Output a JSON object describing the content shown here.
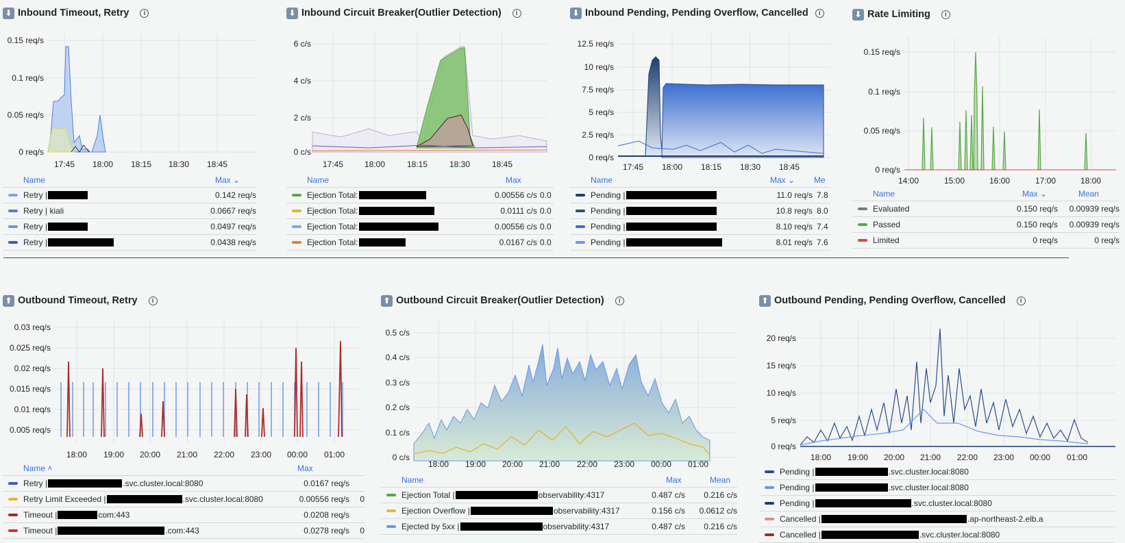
{
  "panels": {
    "in_timeout": {
      "title": "Inbound Timeout, Retry",
      "y_ticks": [
        "0.15 req/s",
        "0.1 req/s",
        "0.05 req/s",
        "0 req/s"
      ],
      "x_ticks": [
        "17:45",
        "18:00",
        "18:15",
        "18:30",
        "18:45"
      ],
      "legend_headers": {
        "name": "Name",
        "max": "Max"
      },
      "rows": [
        {
          "prefix": "Retry |",
          "suffix": "",
          "max": "0.142 req/s",
          "color": "#7ea7e6"
        },
        {
          "prefix": "Retry | kiali",
          "suffix": "",
          "max": "0.0667 req/s",
          "color": "#5080dc"
        },
        {
          "prefix": "Retry |",
          "suffix": "",
          "max": "0.0497 req/s",
          "color": "#6a98e8"
        },
        {
          "prefix": "Retry |",
          "suffix": "",
          "max": "0.0438 req/s",
          "color": "#3a63b8"
        }
      ]
    },
    "in_cb": {
      "title": "Inbound Circuit Breaker(Outlier Detection)",
      "y_ticks": [
        "6 c/s",
        "4 c/s",
        "2 c/s",
        "0 c/s"
      ],
      "x_ticks": [
        "17:45",
        "18:00",
        "18:15",
        "18:30",
        "18:45"
      ],
      "legend_headers": {
        "name": "Name",
        "max": "Max"
      },
      "rows": [
        {
          "prefix": "Ejection Total:",
          "max": "0.00556 c/s",
          "extra": "0.0",
          "color": "#5aa64b"
        },
        {
          "prefix": "Ejection Total:",
          "max": "0.0111 c/s",
          "extra": "0.0",
          "color": "#e0b93a"
        },
        {
          "prefix": "Ejection Total:",
          "max": "0.00556 c/s",
          "extra": "0.0",
          "color": "#7ea7e6"
        },
        {
          "prefix": "Ejection Total:",
          "max": "0.0167 c/s",
          "extra": "0.0",
          "color": "#e67e3a"
        }
      ]
    },
    "in_pending": {
      "title": "Inbound Pending, Pending Overflow, Cancelled",
      "y_ticks": [
        "12.5 req/s",
        "10 req/s",
        "7.5 req/s",
        "5 req/s",
        "2.5 req/s",
        "0 req/s"
      ],
      "x_ticks": [
        "17:45",
        "18:00",
        "18:15",
        "18:30",
        "18:45"
      ],
      "legend_headers": {
        "name": "Name",
        "max": "Max",
        "mean": "Me"
      },
      "rows": [
        {
          "prefix": "Pending |",
          "max": "11.0 req/s",
          "extra": "7.8",
          "color": "#1f3f6e"
        },
        {
          "prefix": "Pending |",
          "max": "10.8 req/s",
          "extra": "8.0",
          "color": "#2a4f8a"
        },
        {
          "prefix": "Pending |",
          "max": "8.10 req/s",
          "extra": "7.4",
          "color": "#3b6fd0"
        },
        {
          "prefix": "Pending |",
          "max": "8.01 req/s",
          "extra": "7.6",
          "color": "#6a98e8"
        }
      ]
    },
    "rate": {
      "title": "Rate Limiting",
      "y_ticks": [
        "0.15 req/s",
        "0.1 req/s",
        "0.05 req/s",
        "0 req/s"
      ],
      "x_ticks": [
        "14:00",
        "15:00",
        "16:00",
        "17:00",
        "18:00"
      ],
      "legend_headers": {
        "name": "Name",
        "max": "Max",
        "mean": "Mean"
      },
      "rows": [
        {
          "prefix": "Evaluated",
          "max": "0.150 req/s",
          "extra": "0.00939 req/s",
          "color": "#7a7a7a"
        },
        {
          "prefix": "Passed",
          "max": "0.150 req/s",
          "extra": "0.00939 req/s",
          "color": "#5aa64b"
        },
        {
          "prefix": "Limited",
          "max": "0 req/s",
          "extra": "0 req/s",
          "color": "#d44a4a"
        }
      ]
    },
    "out_timeout": {
      "title": "Outbound Timeout, Retry",
      "y_ticks": [
        "0.03 req/s",
        "0.025 req/s",
        "0.02 req/s",
        "0.015 req/s",
        "0.01 req/s",
        "0.005 req/s"
      ],
      "x_ticks": [
        "18:00",
        "19:00",
        "20:00",
        "21:00",
        "22:00",
        "23:00",
        "00:00",
        "01:00"
      ],
      "legend_headers": {
        "name": "Name",
        "max": "Max"
      },
      "rows": [
        {
          "prefix": "Retry |",
          "suffix": ".svc.cluster.local:8080",
          "max": "0.0167 req/s",
          "extra": "",
          "color": "#3a63b8"
        },
        {
          "prefix": "Retry Limit Exceeded |",
          "suffix": ".svc.cluster.local:8080",
          "max": "0.00556 req/s",
          "extra": "0",
          "color": "#e0b93a"
        },
        {
          "prefix": "Timeout |",
          "suffix": "com:443",
          "max": "0.0208 req/s",
          "extra": "",
          "color": "#a62a2a"
        },
        {
          "prefix": "Timeout |",
          "suffix": ".com:443",
          "max": "0.0278 req/s",
          "extra": "0",
          "color": "#c23a3a"
        }
      ]
    },
    "out_cb": {
      "title": "Outbound Circuit Breaker(Outlier Detection)",
      "y_ticks": [
        "0.5 c/s",
        "0.4 c/s",
        "0.3 c/s",
        "0.2 c/s",
        "0.1 c/s",
        "0 c/s"
      ],
      "x_ticks": [
        "18:00",
        "19:00",
        "20:00",
        "21:00",
        "22:00",
        "23:00",
        "00:00",
        "01:00"
      ],
      "legend_headers": {
        "name": "Name",
        "max": "Max",
        "mean": "Mean"
      },
      "rows": [
        {
          "prefix": "Ejection Total |",
          "suffix": "observability:4317",
          "max": "0.487 c/s",
          "extra": "0.216 c/s",
          "color": "#5aa64b"
        },
        {
          "prefix": "Ejection Overflow |",
          "suffix": "observability:4317",
          "max": "0.156 c/s",
          "extra": "0.0612 c/s",
          "color": "#e0b93a"
        },
        {
          "prefix": "Ejected by 5xx |",
          "suffix": "observability:4317",
          "max": "0.487 c/s",
          "extra": "0.216 c/s",
          "color": "#6a98e8"
        }
      ]
    },
    "out_pending": {
      "title": "Outbound Pending, Pending Overflow, Cancelled",
      "y_ticks": [
        "20 req/s",
        "15 req/s",
        "10 req/s",
        "5 req/s",
        "0 req/s"
      ],
      "x_ticks": [
        "18:00",
        "19:00",
        "20:00",
        "21:00",
        "22:00",
        "23:00",
        "00:00",
        "01:00"
      ],
      "rows": [
        {
          "prefix": "Pending |",
          "suffix": ".svc.cluster.local:8080",
          "color": "#2a4f8a"
        },
        {
          "prefix": "Pending |",
          "suffix": ".svc.cluster.local:8080",
          "color": "#6a98e8"
        },
        {
          "prefix": "Pending |",
          "suffix": ".svc.cluster.local:8080",
          "color": "#1f3f6e"
        },
        {
          "prefix": "Cancelled |",
          "suffix": ".ap-northeast-2.elb.a",
          "color": "#e88a8a"
        },
        {
          "prefix": "Cancelled |",
          "suffix": ".svc.cluster.local:8080",
          "color": "#a62a2a"
        }
      ]
    }
  },
  "colors": {
    "header_link": "#3871dc",
    "divider": "#2f4f8a"
  }
}
